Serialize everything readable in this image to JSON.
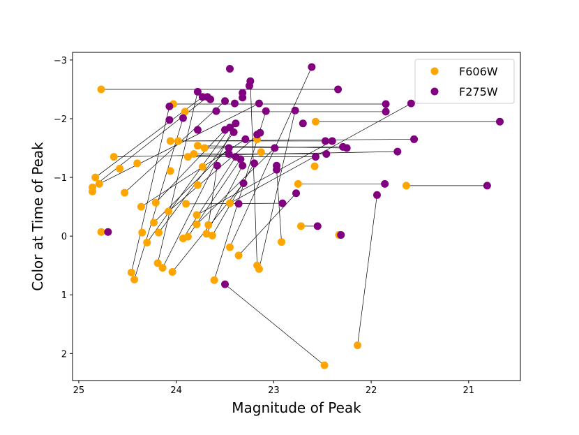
{
  "chart_data": {
    "type": "scatter",
    "title": "",
    "xlabel": "Magnitude of Peak",
    "ylabel": "Color at Time of Peak",
    "xlim": [
      25.064,
      20.469
    ],
    "ylim": [
      2.46,
      -3.13
    ],
    "x_inverted": true,
    "y_inverted": true,
    "xticks": [
      25,
      24,
      23,
      22,
      21
    ],
    "yticks": [
      -3,
      -2,
      -1,
      0,
      1,
      2
    ],
    "xtick_labels": [
      "25",
      "24",
      "23",
      "22",
      "21"
    ],
    "ytick_labels": [
      "−3",
      "−2",
      "−1",
      "0",
      "1",
      "2"
    ],
    "grid": false,
    "legend": "top-right",
    "series": [
      {
        "name": "F606W",
        "color": "#ffa500",
        "points": [
          [
            24.77,
            -2.5
          ],
          [
            24.03,
            -2.25
          ],
          [
            23.91,
            -2.12
          ],
          [
            22.57,
            -1.95
          ],
          [
            24.06,
            -1.62
          ],
          [
            23.98,
            -1.62
          ],
          [
            23.78,
            -1.54
          ],
          [
            23.71,
            -1.5
          ],
          [
            23.82,
            -1.4
          ],
          [
            23.88,
            -1.35
          ],
          [
            24.64,
            -1.35
          ],
          [
            24.4,
            -1.24
          ],
          [
            24.58,
            -1.15
          ],
          [
            23.73,
            -1.18
          ],
          [
            24.06,
            -1.11
          ],
          [
            23.17,
            -1.65
          ],
          [
            23.13,
            -1.43
          ],
          [
            24.83,
            -1.0
          ],
          [
            24.79,
            -0.89
          ],
          [
            24.86,
            -0.83
          ],
          [
            24.86,
            -0.76
          ],
          [
            24.53,
            -0.74
          ],
          [
            23.78,
            -0.87
          ],
          [
            22.75,
            -0.89
          ],
          [
            24.36,
            -0.5
          ],
          [
            24.21,
            -0.57
          ],
          [
            23.9,
            -0.55
          ],
          [
            23.45,
            -0.56
          ],
          [
            24.08,
            -0.42
          ],
          [
            23.79,
            -0.36
          ],
          [
            24.77,
            -0.07
          ],
          [
            24.35,
            -0.06
          ],
          [
            24.23,
            -0.23
          ],
          [
            24.3,
            0.11
          ],
          [
            24.18,
            -0.06
          ],
          [
            23.79,
            -0.2
          ],
          [
            23.67,
            -0.19
          ],
          [
            23.93,
            0.04
          ],
          [
            23.88,
            0.01
          ],
          [
            23.69,
            -0.04
          ],
          [
            23.63,
            -0.01
          ],
          [
            24.46,
            0.62
          ],
          [
            24.43,
            0.74
          ],
          [
            24.19,
            0.46
          ],
          [
            24.14,
            0.54
          ],
          [
            24.04,
            0.61
          ],
          [
            23.61,
            0.75
          ],
          [
            23.45,
            0.19
          ],
          [
            23.36,
            0.33
          ],
          [
            23.17,
            0.5
          ],
          [
            23.15,
            0.56
          ],
          [
            22.92,
            0.1
          ],
          [
            22.72,
            -0.17
          ],
          [
            22.33,
            -0.02
          ],
          [
            22.48,
            2.2
          ],
          [
            22.14,
            1.86
          ],
          [
            21.64,
            -0.86
          ],
          [
            22.58,
            -1.19
          ]
        ]
      },
      {
        "name": "F275W",
        "color": "#800080",
        "points": [
          [
            23.45,
            -2.85
          ],
          [
            22.61,
            -2.88
          ],
          [
            23.24,
            -2.64
          ],
          [
            23.25,
            -2.56
          ],
          [
            22.34,
            -2.5
          ],
          [
            23.78,
            -2.46
          ],
          [
            23.73,
            -2.37
          ],
          [
            23.68,
            -2.37
          ],
          [
            23.65,
            -2.33
          ],
          [
            23.5,
            -2.3
          ],
          [
            23.4,
            -2.26
          ],
          [
            23.32,
            -2.44
          ],
          [
            23.32,
            -2.36
          ],
          [
            23.15,
            -2.26
          ],
          [
            21.85,
            -2.25
          ],
          [
            24.07,
            -2.21
          ],
          [
            23.08,
            -2.13
          ],
          [
            23.59,
            -2.13
          ],
          [
            22.78,
            -2.14
          ],
          [
            21.85,
            -2.12
          ],
          [
            21.59,
            -2.26
          ],
          [
            24.07,
            -1.98
          ],
          [
            23.93,
            -2.01
          ],
          [
            22.7,
            -1.92
          ],
          [
            20.68,
            -1.95
          ],
          [
            23.39,
            -1.92
          ],
          [
            23.45,
            -1.85
          ],
          [
            23.5,
            -1.81
          ],
          [
            23.78,
            -1.81
          ],
          [
            23.41,
            -1.77
          ],
          [
            23.29,
            -1.65
          ],
          [
            23.14,
            -1.76
          ],
          [
            23.17,
            -1.73
          ],
          [
            21.56,
            -1.65
          ],
          [
            22.47,
            -1.62
          ],
          [
            22.4,
            -1.62
          ],
          [
            22.29,
            -1.52
          ],
          [
            22.25,
            -1.5
          ],
          [
            21.73,
            -1.44
          ],
          [
            22.99,
            -1.5
          ],
          [
            23.46,
            -1.5
          ],
          [
            23.46,
            -1.4
          ],
          [
            23.39,
            -1.35
          ],
          [
            23.34,
            -1.31
          ],
          [
            23.2,
            -1.24
          ],
          [
            23.32,
            -1.2
          ],
          [
            23.58,
            -1.2
          ],
          [
            22.97,
            -1.2
          ],
          [
            22.97,
            -1.13
          ],
          [
            22.57,
            -1.35
          ],
          [
            22.46,
            -1.4
          ],
          [
            23.31,
            -0.9
          ],
          [
            21.86,
            -0.89
          ],
          [
            20.81,
            -0.86
          ],
          [
            21.94,
            -0.7
          ],
          [
            22.77,
            -0.73
          ],
          [
            22.91,
            -0.56
          ],
          [
            23.36,
            -0.55
          ],
          [
            24.7,
            -0.07
          ],
          [
            22.31,
            -0.02
          ],
          [
            22.55,
            -0.17
          ],
          [
            23.5,
            0.82
          ]
        ]
      }
    ],
    "connectors": [
      [
        [
          24.77,
          -2.5
        ],
        [
          22.34,
          -2.5
        ]
      ],
      [
        [
          24.03,
          -2.25
        ],
        [
          21.85,
          -2.25
        ]
      ],
      [
        [
          23.91,
          -2.12
        ],
        [
          21.85,
          -2.12
        ]
      ],
      [
        [
          22.57,
          -1.95
        ],
        [
          20.68,
          -1.95
        ]
      ],
      [
        [
          24.06,
          -1.62
        ],
        [
          22.47,
          -1.62
        ]
      ],
      [
        [
          23.98,
          -1.62
        ],
        [
          21.56,
          -1.65
        ]
      ],
      [
        [
          23.78,
          -1.54
        ],
        [
          22.25,
          -1.5
        ]
      ],
      [
        [
          23.71,
          -1.5
        ],
        [
          22.29,
          -1.52
        ]
      ],
      [
        [
          23.82,
          -1.4
        ],
        [
          22.46,
          -1.4
        ]
      ],
      [
        [
          23.88,
          -1.35
        ],
        [
          22.57,
          -1.35
        ]
      ],
      [
        [
          24.64,
          -1.35
        ],
        [
          21.73,
          -1.44
        ]
      ],
      [
        [
          23.9,
          -0.55
        ],
        [
          22.91,
          -0.56
        ]
      ],
      [
        [
          22.75,
          -0.89
        ],
        [
          21.86,
          -0.89
        ]
      ],
      [
        [
          21.64,
          -0.86
        ],
        [
          20.81,
          -0.86
        ]
      ],
      [
        [
          22.72,
          -0.17
        ],
        [
          22.55,
          -0.17
        ]
      ],
      [
        [
          22.33,
          -0.02
        ],
        [
          22.31,
          -0.02
        ]
      ],
      [
        [
          24.77,
          -0.07
        ],
        [
          24.7,
          -0.07
        ]
      ],
      [
        [
          22.48,
          2.2
        ],
        [
          23.5,
          0.82
        ]
      ],
      [
        [
          22.14,
          1.86
        ],
        [
          21.94,
          -0.7
        ]
      ],
      [
        [
          22.92,
          0.1
        ],
        [
          22.97,
          -1.13
        ]
      ],
      [
        [
          24.83,
          -1.0
        ],
        [
          23.73,
          -2.37
        ]
      ],
      [
        [
          24.86,
          -0.83
        ],
        [
          23.68,
          -2.37
        ]
      ],
      [
        [
          24.79,
          -0.89
        ],
        [
          23.15,
          -2.26
        ]
      ],
      [
        [
          24.53,
          -0.74
        ],
        [
          23.5,
          -2.3
        ]
      ],
      [
        [
          24.46,
          0.62
        ],
        [
          24.07,
          -2.21
        ]
      ],
      [
        [
          24.43,
          0.74
        ],
        [
          23.93,
          -2.01
        ]
      ],
      [
        [
          24.19,
          0.46
        ],
        [
          23.78,
          -2.46
        ]
      ],
      [
        [
          24.14,
          0.54
        ],
        [
          23.39,
          -1.92
        ]
      ],
      [
        [
          24.04,
          0.61
        ],
        [
          23.31,
          -0.9
        ]
      ],
      [
        [
          23.61,
          0.75
        ],
        [
          23.08,
          -2.13
        ]
      ],
      [
        [
          23.17,
          0.5
        ],
        [
          23.24,
          -2.64
        ]
      ],
      [
        [
          23.15,
          0.56
        ],
        [
          22.78,
          -2.14
        ]
      ],
      [
        [
          23.45,
          0.19
        ],
        [
          22.61,
          -2.88
        ]
      ],
      [
        [
          23.36,
          0.33
        ],
        [
          22.77,
          -0.73
        ]
      ],
      [
        [
          23.45,
          -0.56
        ],
        [
          21.59,
          -2.26
        ]
      ],
      [
        [
          24.36,
          -0.5
        ],
        [
          23.29,
          -1.65
        ]
      ],
      [
        [
          24.21,
          -0.57
        ],
        [
          23.5,
          -1.81
        ]
      ],
      [
        [
          23.93,
          0.04
        ],
        [
          23.39,
          -1.35
        ]
      ],
      [
        [
          23.88,
          0.01
        ],
        [
          23.34,
          -1.31
        ]
      ],
      [
        [
          23.69,
          -0.04
        ],
        [
          23.32,
          -1.2
        ]
      ],
      [
        [
          23.63,
          -0.01
        ],
        [
          23.2,
          -1.24
        ]
      ],
      [
        [
          23.79,
          -0.2
        ],
        [
          22.99,
          -1.5
        ]
      ],
      [
        [
          23.67,
          -0.19
        ],
        [
          23.58,
          -1.2
        ]
      ],
      [
        [
          24.23,
          -0.23
        ],
        [
          23.46,
          -1.5
        ]
      ],
      [
        [
          24.3,
          0.11
        ],
        [
          23.45,
          -1.85
        ]
      ],
      [
        [
          24.18,
          -0.06
        ],
        [
          23.41,
          -1.77
        ]
      ],
      [
        [
          24.08,
          -0.42
        ],
        [
          23.14,
          -1.76
        ]
      ],
      [
        [
          23.79,
          -0.36
        ],
        [
          22.4,
          -1.62
        ]
      ]
    ]
  }
}
